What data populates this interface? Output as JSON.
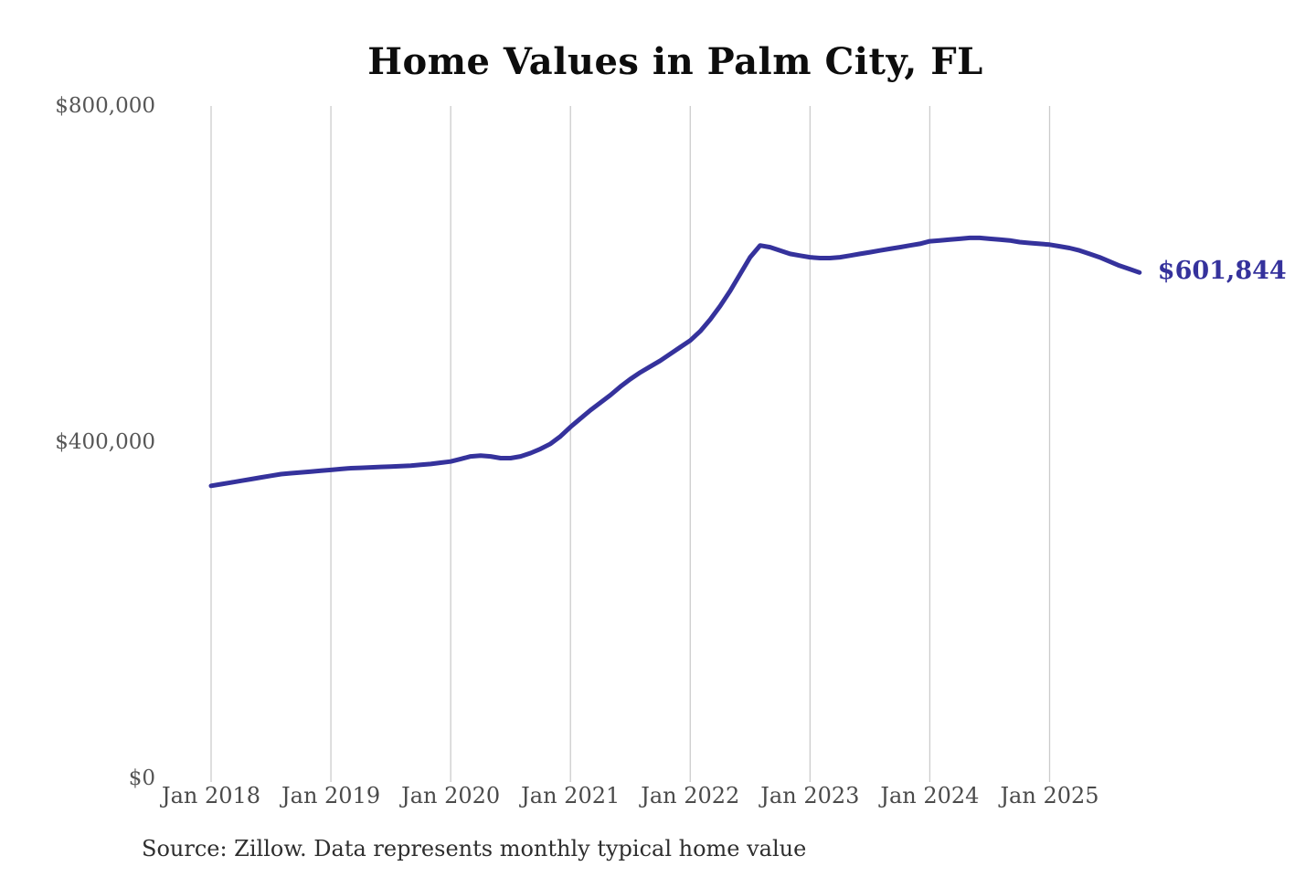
{
  "chart_data": {
    "type": "line",
    "title": "Home Values in Palm City, FL",
    "source_note": "Source: Zillow. Data represents monthly typical home value",
    "series_name": "Monthly typical home value",
    "frequency": "monthly",
    "x_start": "Jan 2018",
    "x_end": "Oct 2025",
    "x_ticks": [
      "Jan 2018",
      "Jan 2019",
      "Jan 2020",
      "Jan 2021",
      "Jan 2022",
      "Jan 2023",
      "Jan 2024",
      "Jan 2025"
    ],
    "y_ticks": [
      {
        "label": "$800,000",
        "value": 800000
      },
      {
        "label": "$400,000",
        "value": 400000
      },
      {
        "label": "$0",
        "value": 0
      }
    ],
    "ylim": [
      0,
      800000
    ],
    "grid": "vertical-only",
    "legend": "none",
    "end_label": "$601,844",
    "last_value": 601844,
    "line_color": "#35329c",
    "grid_color": "#cccccc",
    "values": [
      348000,
      350000,
      352000,
      354000,
      356000,
      358000,
      360000,
      362000,
      363000,
      364000,
      365000,
      366000,
      367000,
      368000,
      369000,
      369500,
      370000,
      370500,
      371000,
      371500,
      372000,
      373000,
      374000,
      375500,
      377000,
      380000,
      383000,
      384000,
      383000,
      381000,
      381000,
      383000,
      387000,
      392000,
      398000,
      407000,
      418000,
      428000,
      438000,
      447000,
      456000,
      466000,
      475000,
      483000,
      490000,
      497000,
      505000,
      513000,
      521000,
      532000,
      546000,
      562000,
      580000,
      600000,
      620000,
      634000,
      632000,
      628000,
      624000,
      622000,
      620000,
      619000,
      619000,
      620000,
      622000,
      624000,
      626000,
      628000,
      630000,
      632000,
      634000,
      636000,
      639000,
      640000,
      641000,
      642000,
      643000,
      643000,
      642000,
      641000,
      640000,
      638000,
      637000,
      636000,
      635000,
      633000,
      631000,
      628000,
      624000,
      620000,
      615000,
      610000,
      606000,
      601844
    ]
  }
}
